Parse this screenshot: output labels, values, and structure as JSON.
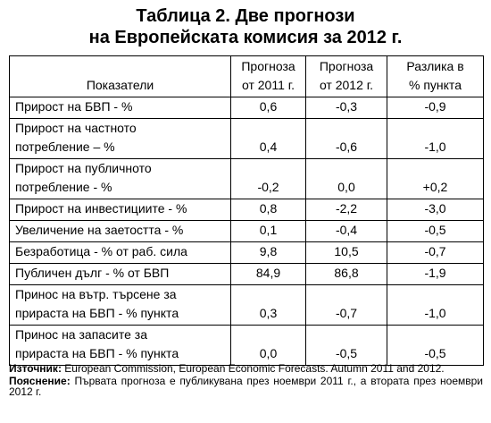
{
  "title": [
    "Таблица 2. Две прогнози",
    "на Европейската комисия за 2012 г."
  ],
  "table": {
    "header": [
      [
        "Показатели"
      ],
      [
        "Прогноза",
        "от 2011 г."
      ],
      [
        "Прогноза",
        "от 2012 г."
      ],
      [
        "Разлика в",
        "% пункта"
      ]
    ],
    "rows": [
      {
        "label": [
          "Прирост на БВП - %"
        ],
        "values": [
          "0,6",
          "-0,3",
          "-0,9"
        ]
      },
      {
        "label": [
          "Прирост на частното",
          "потребление – %"
        ],
        "values": [
          "0,4",
          "-0,6",
          "-1,0"
        ]
      },
      {
        "label": [
          "Прирост на публичното",
          "потребление - %"
        ],
        "values": [
          "-0,2",
          "0,0",
          "+0,2"
        ]
      },
      {
        "label": [
          "Прирост на инвестициите - %"
        ],
        "values": [
          "0,8",
          "-2,2",
          "-3,0"
        ]
      },
      {
        "label": [
          "Увеличение на заетостта - %"
        ],
        "values": [
          "0,1",
          "-0,4",
          "-0,5"
        ]
      },
      {
        "label": [
          "Безработица - % от раб. сила"
        ],
        "values": [
          "9,8",
          "10,5",
          "-0,7"
        ]
      },
      {
        "label": [
          "Публичен дълг - % от БВП"
        ],
        "values": [
          "84,9",
          "86,8",
          "-1,9"
        ]
      },
      {
        "label": [
          "Принос на вътр. търсене за",
          "прираста на БВП - % пункта"
        ],
        "values": [
          "0,3",
          "-0,7",
          "-1,0"
        ]
      },
      {
        "label": [
          "Принос на запасите за",
          "прираста на БВП - % пункта"
        ],
        "values": [
          "0,0",
          "-0,5",
          "-0,5"
        ]
      }
    ]
  },
  "notes": [
    {
      "label": "Източник:",
      "text": "European Commission, European Economic Forecasts. Autumn 2011 and 2012."
    },
    {
      "label": "Пояснение:",
      "text": "Първата прогноза е публикувана през ноември 2011 г., а втората през ноември 2012 г."
    }
  ]
}
